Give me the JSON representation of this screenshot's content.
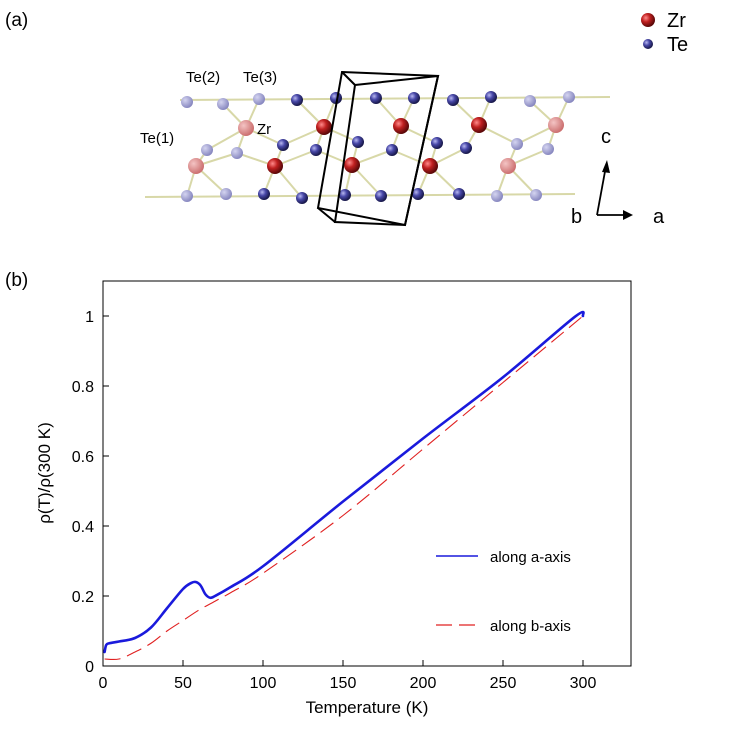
{
  "panel_a": {
    "label": "(a)",
    "legend": [
      {
        "label": "Zr",
        "color": "#b01818"
      },
      {
        "label": "Te",
        "color": "#3c3c98"
      }
    ],
    "site_labels": {
      "te1": "Te(1)",
      "te2": "Te(2)",
      "te3": "Te(3)",
      "zr": "Zr"
    },
    "axes": {
      "c": "c",
      "b": "b",
      "a": "a"
    },
    "colors": {
      "zr": "#b01818",
      "te": "#3c3c98",
      "bond": "#d8d8a8",
      "cell": "#000000"
    }
  },
  "panel_b": {
    "label": "(b)"
  },
  "chart_data": {
    "type": "line",
    "xlabel": "Temperature (K)",
    "ylabel": "ρ(T)/ρ(300 K)",
    "xlim": [
      0,
      330
    ],
    "ylim": [
      0,
      1.1
    ],
    "xticks": [
      0,
      50,
      100,
      150,
      200,
      250,
      300
    ],
    "yticks": [
      0,
      0.2,
      0.4,
      0.6,
      0.8,
      1
    ],
    "xtick_labels": [
      "0",
      "50",
      "100",
      "150",
      "200",
      "250",
      "300"
    ],
    "ytick_labels": [
      "0",
      "0.2",
      "0.4",
      "0.6",
      "0.8",
      "1"
    ],
    "grid": false,
    "legend_position": "right",
    "series": [
      {
        "name": "along a-axis",
        "color": "#1a1adc",
        "style": "solid",
        "x": [
          1,
          2,
          4,
          10,
          20,
          30,
          40,
          50,
          55,
          58,
          61,
          64,
          67,
          70,
          80,
          100,
          150,
          200,
          250,
          295,
          300
        ],
        "y": [
          0.04,
          0.06,
          0.065,
          0.07,
          0.08,
          0.11,
          0.165,
          0.22,
          0.237,
          0.24,
          0.23,
          0.205,
          0.195,
          0.2,
          0.226,
          0.285,
          0.47,
          0.65,
          0.825,
          0.998,
          1.0
        ]
      },
      {
        "name": "along b-axis",
        "color": "#e02020",
        "style": "dashed",
        "x": [
          1,
          10,
          20,
          30,
          40,
          50,
          60,
          70,
          80,
          100,
          150,
          200,
          250,
          300
        ],
        "y": [
          0.02,
          0.02,
          0.04,
          0.065,
          0.1,
          0.13,
          0.16,
          0.185,
          0.21,
          0.265,
          0.43,
          0.62,
          0.81,
          1.0
        ]
      }
    ]
  }
}
